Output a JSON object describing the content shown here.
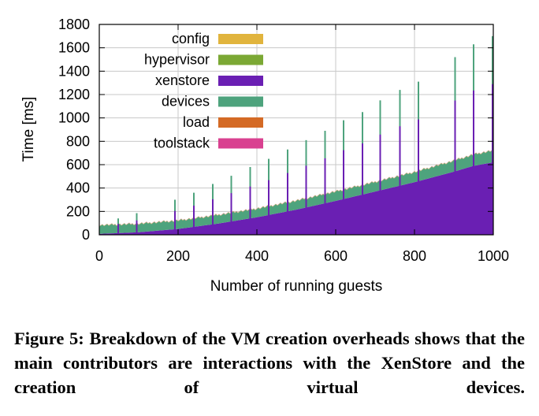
{
  "chart_data": {
    "type": "area",
    "xlabel": "Number of running guests",
    "ylabel": "Time [ms]",
    "xlim": [
      0,
      1000
    ],
    "ylim": [
      0,
      1800
    ],
    "xticks": [
      "0",
      "200",
      "400",
      "600",
      "800",
      "1000"
    ],
    "yticks": [
      "0",
      "200",
      "400",
      "600",
      "800",
      "1000",
      "1200",
      "1400",
      "1600",
      "1800"
    ],
    "grid": true,
    "legend_position": "top-left",
    "stacking": "stacked",
    "series": [
      {
        "name": "config",
        "color": "#e1b43d",
        "x": [
          0,
          1000
        ],
        "values": [
          1,
          1
        ]
      },
      {
        "name": "hypervisor",
        "color": "#7ba834",
        "x": [
          0,
          1000
        ],
        "values": [
          2,
          2
        ]
      },
      {
        "name": "xenstore",
        "color": "#6a1fb3",
        "x": [
          0,
          100,
          200,
          300,
          400,
          500,
          600,
          700,
          800,
          900,
          950,
          1000
        ],
        "values": [
          8,
          22,
          50,
          95,
          150,
          215,
          290,
          370,
          450,
          540,
          590,
          620
        ]
      },
      {
        "name": "devices",
        "color": "#4ea37d",
        "x": [
          0,
          100,
          200,
          300,
          400,
          500,
          600,
          700,
          800,
          900,
          950,
          1000
        ],
        "values": [
          72,
          70,
          70,
          72,
          72,
          75,
          78,
          80,
          85,
          92,
          95,
          100
        ]
      },
      {
        "name": "load",
        "color": "#d46a25",
        "x": [
          0,
          1000
        ],
        "values": [
          1,
          1
        ]
      },
      {
        "name": "toolstack",
        "color": "#d94190",
        "x": [
          0,
          1000
        ],
        "values": [
          1,
          1
        ]
      }
    ],
    "spikes": {
      "x": [
        48,
        95,
        192,
        240,
        288,
        335,
        383,
        430,
        478,
        525,
        573,
        620,
        668,
        713,
        763,
        810,
        903,
        950,
        998
      ],
      "total": [
        140,
        185,
        300,
        360,
        435,
        505,
        580,
        650,
        730,
        810,
        890,
        980,
        1050,
        1150,
        1240,
        1310,
        1520,
        1630,
        1700
      ]
    }
  },
  "caption": "Figure 5: Breakdown of the VM creation overheads shows that the main contributors are interactions with the XenStore and the creation of virtual devices."
}
